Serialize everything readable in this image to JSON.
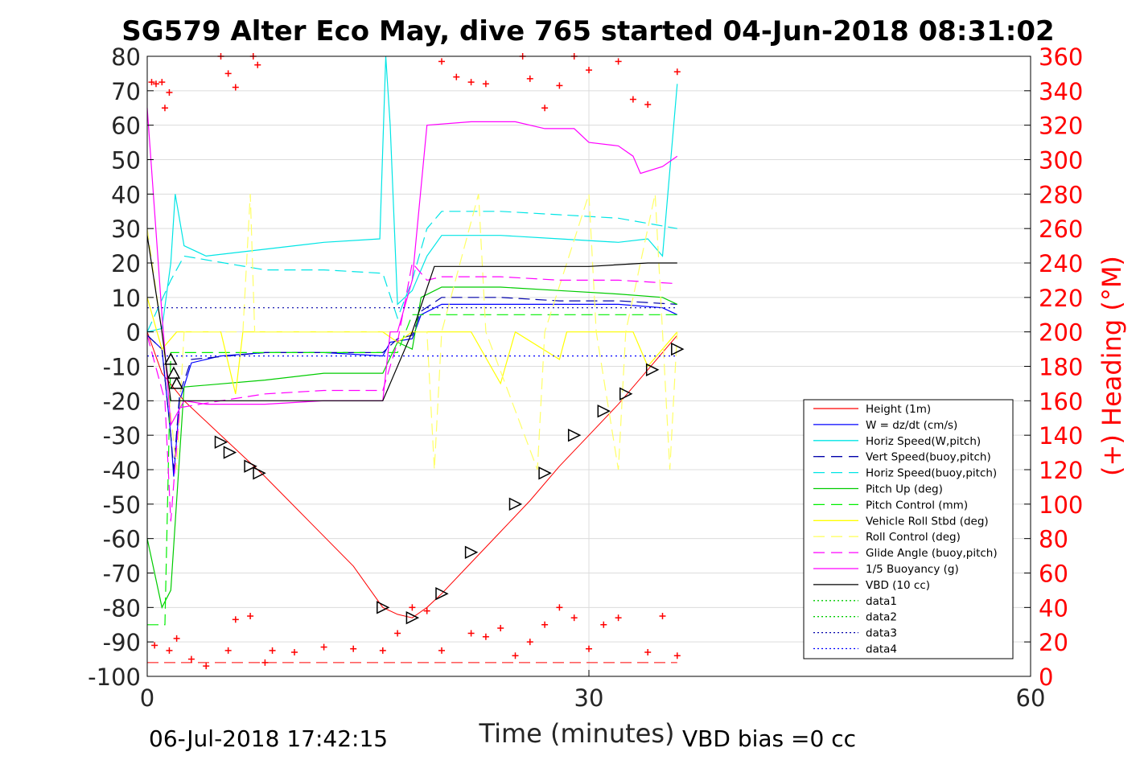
{
  "chart_data": {
    "type": "line",
    "title": "SG579 Alter Eco May, dive 765 started 04-Jun-2018 08:31:02",
    "xlabel": "Time (minutes)",
    "ylabel_right": "(+) Heading (°M)",
    "xlim": [
      0,
      60
    ],
    "ylim": [
      -100,
      80
    ],
    "ylim_right": [
      0,
      360
    ],
    "x_ticks": [
      "0",
      "30",
      "60"
    ],
    "y_ticks": [
      "80",
      "70",
      "60",
      "50",
      "40",
      "30",
      "20",
      "10",
      "0",
      "-10",
      "-20",
      "-30",
      "-40",
      "-50",
      "-60",
      "-70",
      "-80",
      "-90",
      "-100"
    ],
    "y_ticks_right": [
      "360",
      "340",
      "320",
      "300",
      "280",
      "260",
      "240",
      "220",
      "200",
      "180",
      "160",
      "140",
      "120",
      "100",
      "80",
      "60",
      "40",
      "20",
      "0"
    ],
    "grid": true,
    "legend_position": "bottom-right, inside",
    "footer_left": "06-Jul-2018 17:42:15",
    "footer_right": "VBD bias =0 cc",
    "series": [
      {
        "name": "Height (1m)",
        "color": "#ff0000",
        "style": "solid",
        "points": [
          [
            0,
            0
          ],
          [
            1,
            -12
          ],
          [
            2.5,
            -20
          ],
          [
            5,
            -30
          ],
          [
            8,
            -42
          ],
          [
            11,
            -55
          ],
          [
            14,
            -68
          ],
          [
            16,
            -80
          ],
          [
            17,
            -82
          ],
          [
            18,
            -83
          ],
          [
            19,
            -80
          ],
          [
            20,
            -76
          ],
          [
            22,
            -67
          ],
          [
            24,
            -58
          ],
          [
            26,
            -49
          ],
          [
            28,
            -39
          ],
          [
            30,
            -30
          ],
          [
            32,
            -21
          ],
          [
            34,
            -11
          ],
          [
            36,
            -1
          ]
        ]
      },
      {
        "name": "W = dz/dt (cm/s)",
        "color": "#0000ff",
        "style": "solid",
        "points": [
          [
            0,
            -1
          ],
          [
            1,
            -5
          ],
          [
            1.6,
            -30
          ],
          [
            1.8,
            -42
          ],
          [
            2.2,
            -20
          ],
          [
            3,
            -9
          ],
          [
            5,
            -7
          ],
          [
            8,
            -6
          ],
          [
            12,
            -6
          ],
          [
            16,
            -7
          ],
          [
            16.5,
            -3
          ],
          [
            18,
            -2
          ],
          [
            18.6,
            5
          ],
          [
            20,
            8
          ],
          [
            24,
            8
          ],
          [
            28,
            8
          ],
          [
            32,
            8
          ],
          [
            35,
            7
          ],
          [
            36,
            5
          ]
        ]
      },
      {
        "name": "Horiz Speed(W,pitch)",
        "color": "#00e5e5",
        "style": "solid",
        "points": [
          [
            0,
            0
          ],
          [
            1,
            1
          ],
          [
            1.6,
            20
          ],
          [
            1.9,
            40
          ],
          [
            2.5,
            25
          ],
          [
            4,
            22
          ],
          [
            8,
            24
          ],
          [
            12,
            26
          ],
          [
            15.8,
            27
          ],
          [
            16.2,
            80
          ],
          [
            16.5,
            60
          ],
          [
            17,
            8
          ],
          [
            18,
            12
          ],
          [
            19,
            22
          ],
          [
            20,
            28
          ],
          [
            24,
            28
          ],
          [
            28,
            27
          ],
          [
            32,
            26
          ],
          [
            34,
            27
          ],
          [
            35,
            22
          ],
          [
            36,
            72
          ]
        ]
      },
      {
        "name": "Vert Speed(buoy,pitch)",
        "color": "#0000aa",
        "style": "dashed",
        "points": [
          [
            0,
            -1
          ],
          [
            1,
            -5
          ],
          [
            1.6,
            -30
          ],
          [
            1.8,
            -40
          ],
          [
            2.2,
            -18
          ],
          [
            3,
            -8
          ],
          [
            8,
            -6
          ],
          [
            12,
            -6
          ],
          [
            16,
            -6
          ],
          [
            17,
            -2
          ],
          [
            18,
            -1
          ],
          [
            18.6,
            6
          ],
          [
            20,
            10
          ],
          [
            24,
            10
          ],
          [
            28,
            9
          ],
          [
            32,
            9
          ],
          [
            36,
            8
          ]
        ]
      },
      {
        "name": "Horiz Speed(buoy,pitch)",
        "color": "#00e5e5",
        "style": "dashed",
        "points": [
          [
            0,
            0
          ],
          [
            1.6,
            15
          ],
          [
            2.5,
            22
          ],
          [
            8,
            18
          ],
          [
            12,
            18
          ],
          [
            16,
            17
          ],
          [
            17,
            4
          ],
          [
            18,
            15
          ],
          [
            19,
            30
          ],
          [
            20,
            35
          ],
          [
            24,
            35
          ],
          [
            28,
            34
          ],
          [
            32,
            33
          ],
          [
            36,
            30
          ]
        ]
      },
      {
        "name": "Pitch Up (deg)",
        "color": "#00cc00",
        "style": "solid",
        "points": [
          [
            0,
            -60
          ],
          [
            1,
            -80
          ],
          [
            1.6,
            -75
          ],
          [
            2.5,
            -16
          ],
          [
            8,
            -14
          ],
          [
            12,
            -12
          ],
          [
            16,
            -12
          ],
          [
            17,
            -3
          ],
          [
            18,
            -5
          ],
          [
            18.6,
            10
          ],
          [
            20,
            13
          ],
          [
            24,
            13
          ],
          [
            28,
            12
          ],
          [
            32,
            11
          ],
          [
            35,
            10
          ],
          [
            36,
            8
          ]
        ]
      },
      {
        "name": "Pitch Control (mm)",
        "color": "#00ee00",
        "style": "dashed",
        "points": [
          [
            0,
            -85
          ],
          [
            1.2,
            -85
          ],
          [
            1.6,
            -6
          ],
          [
            16,
            -6
          ],
          [
            17,
            -6
          ],
          [
            18,
            5
          ],
          [
            36,
            5
          ]
        ]
      },
      {
        "name": "Vehicle Roll Stbd (deg)",
        "color": "#ffff00",
        "style": "solid",
        "points": [
          [
            0,
            10
          ],
          [
            1,
            -5
          ],
          [
            2,
            0
          ],
          [
            5,
            0
          ],
          [
            6,
            -18
          ],
          [
            6.5,
            0
          ],
          [
            10,
            0
          ],
          [
            14,
            0
          ],
          [
            16,
            0
          ],
          [
            17,
            -3
          ],
          [
            18,
            0
          ],
          [
            20,
            0
          ],
          [
            22,
            0
          ],
          [
            24,
            -15
          ],
          [
            25,
            0
          ],
          [
            28,
            -8
          ],
          [
            28.5,
            0
          ],
          [
            33,
            0
          ],
          [
            34,
            -10
          ],
          [
            36,
            0
          ]
        ]
      },
      {
        "name": "Roll Control (deg)",
        "color": "#ffff66",
        "style": "dashed",
        "points": [
          [
            0,
            30
          ],
          [
            1,
            0
          ],
          [
            2,
            -40
          ],
          [
            2.5,
            0
          ],
          [
            6.5,
            0
          ],
          [
            7,
            40
          ],
          [
            7.3,
            0
          ],
          [
            16,
            0
          ],
          [
            19,
            0
          ],
          [
            19.5,
            -40
          ],
          [
            20,
            0
          ],
          [
            22.5,
            40
          ],
          [
            23,
            0
          ],
          [
            26.5,
            -40
          ],
          [
            27,
            0
          ],
          [
            30,
            40
          ],
          [
            30.5,
            0
          ],
          [
            32,
            -40
          ],
          [
            32.5,
            0
          ],
          [
            34.5,
            40
          ],
          [
            35,
            0
          ],
          [
            35.5,
            -40
          ],
          [
            36,
            0
          ]
        ]
      },
      {
        "name": "Glide Angle (buoy,pitch)",
        "color": "#ff00ff",
        "style": "dashed",
        "points": [
          [
            0,
            -1
          ],
          [
            1.2,
            -20
          ],
          [
            1.6,
            -55
          ],
          [
            2.2,
            -22
          ],
          [
            5,
            -20
          ],
          [
            8,
            -18
          ],
          [
            12,
            -17
          ],
          [
            16,
            -17
          ],
          [
            17,
            -3
          ],
          [
            18,
            20
          ],
          [
            19,
            15
          ],
          [
            20,
            16
          ],
          [
            24,
            16
          ],
          [
            28,
            15
          ],
          [
            32,
            15
          ],
          [
            36,
            14
          ]
        ]
      },
      {
        "name": "1/5 Buoyancy (g)",
        "color": "#ff00ff",
        "style": "solid",
        "points": [
          [
            0,
            65
          ],
          [
            1,
            5
          ],
          [
            1.6,
            -27
          ],
          [
            2.5,
            -20
          ],
          [
            4,
            -21
          ],
          [
            8,
            -21
          ],
          [
            12,
            -20
          ],
          [
            16,
            -20
          ],
          [
            16.5,
            0
          ],
          [
            17,
            0
          ],
          [
            18,
            15
          ],
          [
            19,
            60
          ],
          [
            22,
            61
          ],
          [
            25,
            61
          ],
          [
            27,
            59
          ],
          [
            29,
            59
          ],
          [
            30,
            55
          ],
          [
            32,
            54
          ],
          [
            33,
            51
          ],
          [
            33.5,
            46
          ],
          [
            35,
            48
          ],
          [
            36,
            51
          ]
        ]
      },
      {
        "name": "VBD (10 cc)",
        "color": "#000000",
        "style": "solid",
        "points": [
          [
            0,
            28
          ],
          [
            1,
            0
          ],
          [
            1.6,
            -20
          ],
          [
            16,
            -20
          ],
          [
            18,
            0
          ],
          [
            19.5,
            19
          ],
          [
            25,
            19
          ],
          [
            30,
            19
          ],
          [
            34,
            20
          ],
          [
            36,
            20
          ]
        ]
      },
      {
        "name": "data1",
        "color": "#00cc00",
        "style": "dotted",
        "points": []
      },
      {
        "name": "data2",
        "color": "#00cc00",
        "style": "dotted",
        "points": []
      },
      {
        "name": "data3",
        "color": "#0000aa",
        "style": "dotted",
        "points": [
          [
            0,
            7
          ],
          [
            36,
            7
          ]
        ]
      },
      {
        "name": "data4",
        "color": "#0000ff",
        "style": "dotted",
        "points": [
          [
            0,
            -7
          ],
          [
            36,
            -7
          ]
        ]
      }
    ],
    "heading_markers": {
      "name": "Heading",
      "color": "#ff0000",
      "marker": "+",
      "axis": "right",
      "points": [
        [
          0.3,
          345
        ],
        [
          0.6,
          344
        ],
        [
          1,
          345
        ],
        [
          1.2,
          330
        ],
        [
          1.5,
          339
        ],
        [
          5,
          360
        ],
        [
          5.5,
          350
        ],
        [
          6,
          342
        ],
        [
          7.2,
          360
        ],
        [
          7.5,
          355
        ],
        [
          20,
          357
        ],
        [
          21,
          348
        ],
        [
          22,
          345
        ],
        [
          23,
          344
        ],
        [
          25.5,
          360
        ],
        [
          26,
          347
        ],
        [
          27,
          330
        ],
        [
          28,
          343
        ],
        [
          29,
          360
        ],
        [
          30,
          352
        ],
        [
          32,
          357
        ],
        [
          33,
          335
        ],
        [
          34,
          332
        ],
        [
          36,
          351
        ],
        [
          0.5,
          18
        ],
        [
          1.5,
          15
        ],
        [
          2,
          22
        ],
        [
          3,
          10
        ],
        [
          4,
          6
        ],
        [
          5.5,
          15
        ],
        [
          6,
          33
        ],
        [
          7,
          35
        ],
        [
          8,
          8
        ],
        [
          8.5,
          15
        ],
        [
          10,
          14
        ],
        [
          12,
          17
        ],
        [
          14,
          16
        ],
        [
          16,
          15
        ],
        [
          17,
          25
        ],
        [
          18,
          40
        ],
        [
          19,
          38
        ],
        [
          20,
          15
        ],
        [
          22,
          25
        ],
        [
          23,
          23
        ],
        [
          24,
          28
        ],
        [
          25,
          12
        ],
        [
          26,
          20
        ],
        [
          27,
          30
        ],
        [
          28,
          40
        ],
        [
          29,
          34
        ],
        [
          30,
          16
        ],
        [
          31,
          30
        ],
        [
          32,
          34
        ],
        [
          34,
          14
        ],
        [
          35,
          35
        ],
        [
          36,
          12
        ]
      ]
    },
    "heading_reference_line": {
      "color": "#ff0000",
      "style": "dashed",
      "value_left": -96
    },
    "triangle_markers": {
      "color": "#000000",
      "down_triangles": [
        [
          1.6,
          -8
        ],
        [
          1.8,
          -12
        ],
        [
          2,
          -15
        ]
      ],
      "left_triangles": [
        [
          5,
          -32
        ],
        [
          5.6,
          -35
        ],
        [
          7,
          -39
        ],
        [
          7.6,
          -41
        ],
        [
          16,
          -80
        ],
        [
          18,
          -83
        ],
        [
          20,
          -76
        ],
        [
          22,
          -64
        ],
        [
          25,
          -50
        ],
        [
          27,
          -41
        ],
        [
          29,
          -30
        ],
        [
          31,
          -23
        ],
        [
          32.5,
          -18
        ],
        [
          34.3,
          -11
        ],
        [
          36,
          -5
        ]
      ]
    }
  }
}
